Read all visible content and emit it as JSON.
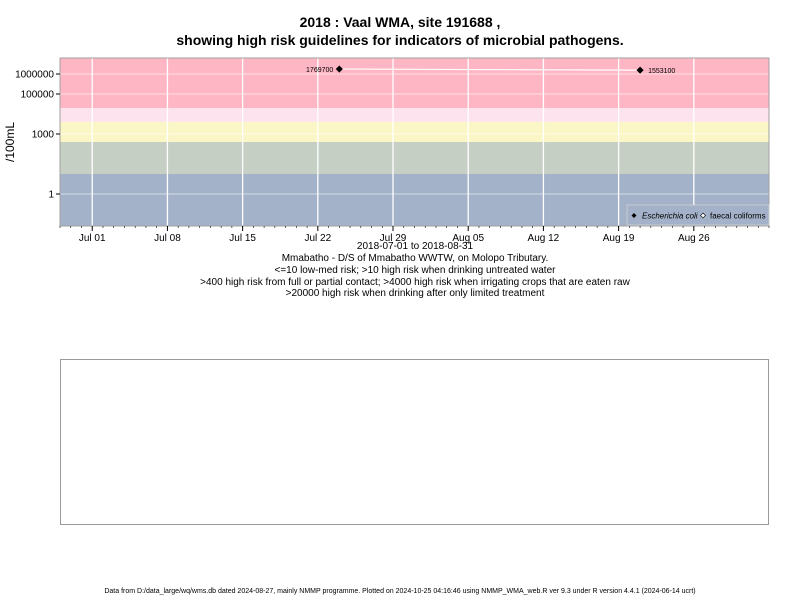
{
  "title_line1": "2018 : Vaal WMA, site 191688 ,",
  "title_line2": "showing high risk guidelines for indicators of microbial pathogens.",
  "captions": [
    "2018-07-01 to 2018-08-31",
    "Mmabatho - D/S of Mmabatho WWTW, on Molopo Tributary.",
    "<=10 low-med risk; >10 high risk when drinking untreated water",
    ">400 high risk from full or partial contact; >4000 high risk when irrigating crops that are eaten raw",
    ">20000 high risk when drinking after only limited treatment"
  ],
  "footer": "Data from D:/data_large/wq/wms.db dated 2024-08-27, mainly NMMP programme. Plotted on 2024-10-25 04:16:46 using NMMP_WMA_web.R ver 9.3 under R version 4.4.1 (2024-06-14 ucrt)",
  "chart_data": {
    "type": "scatter",
    "y_scale": "log10",
    "ylabel": "/100mL",
    "xlim": [
      "2018-06-28",
      "2018-09-02"
    ],
    "ylim_log10": [
      -1.6,
      6.8
    ],
    "x_ticks": [
      {
        "date": "2018-07-01",
        "label": "Jul 01"
      },
      {
        "date": "2018-07-08",
        "label": "Jul 08"
      },
      {
        "date": "2018-07-15",
        "label": "Jul 15"
      },
      {
        "date": "2018-07-22",
        "label": "Jul 22"
      },
      {
        "date": "2018-07-29",
        "label": "Jul 29"
      },
      {
        "date": "2018-08-05",
        "label": "Aug 05"
      },
      {
        "date": "2018-08-12",
        "label": "Aug 12"
      },
      {
        "date": "2018-08-19",
        "label": "Aug 19"
      },
      {
        "date": "2018-08-26",
        "label": "Aug 26"
      }
    ],
    "y_ticks": [
      {
        "value": 1,
        "label": "1"
      },
      {
        "value": 1000,
        "label": "1000"
      },
      {
        "value": 100000,
        "label": "100000"
      },
      {
        "value": 1000000,
        "label": "1000000"
      }
    ],
    "risk_bands": [
      {
        "from": 0.02,
        "to": 10,
        "color": "#a3b2c9"
      },
      {
        "from": 10,
        "to": 400,
        "color": "#c5cfc4"
      },
      {
        "from": 400,
        "to": 4000,
        "color": "#fbf6c6"
      },
      {
        "from": 4000,
        "to": 20000,
        "color": "#fde3ee"
      },
      {
        "from": 20000,
        "to": 6000000,
        "color": "#ffb6c4"
      }
    ],
    "series": [
      {
        "name": "Escherichia coli",
        "marker": "filled-diamond",
        "points": [
          {
            "date": "2018-07-24",
            "value": 1769700,
            "label": "1769700"
          },
          {
            "date": "2018-08-21",
            "value": 1553100,
            "label": "1553100"
          }
        ]
      },
      {
        "name": "faecal coliforms",
        "marker": "open-diamond",
        "points": []
      }
    ],
    "legend_position": "bottom-right",
    "grid": true
  }
}
